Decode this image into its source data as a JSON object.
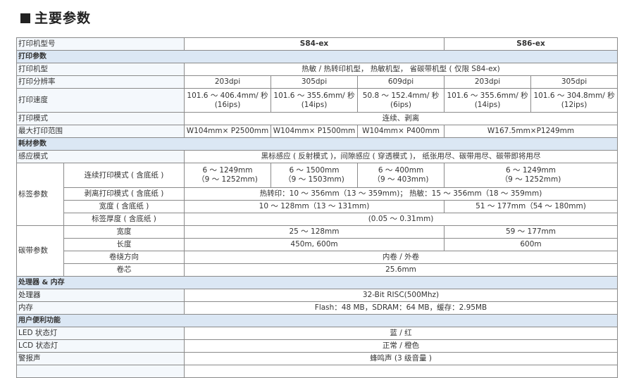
{
  "title": "主要参数",
  "header": {
    "label": "打印机型号",
    "models": [
      "S84-ex",
      "S86-ex"
    ]
  },
  "sections": {
    "print": "打印参数",
    "media": "耗材参数",
    "cpu": "处理器 & 内存",
    "user": "用户便利功能"
  },
  "rows": {
    "type": {
      "label": "打印机型",
      "value": "热敏 / 热转印机型， 热敏机型， 省碳带机型 ( 仅限 S84-ex)"
    },
    "resolution": {
      "label": "打印分辨率",
      "values": [
        "203dpi",
        "305dpi",
        "609dpi",
        "203dpi",
        "305dpi"
      ]
    },
    "speed": {
      "label": "打印速度",
      "values": [
        [
          "101.6 ～ 406.4mm/ 秒",
          "(16ips)"
        ],
        [
          "101.6 ～ 355.6mm/ 秒",
          "(14ips)"
        ],
        [
          "50.8 ～ 152.4mm/ 秒",
          "(6ips)"
        ],
        [
          "101.6 ～ 355.6mm/ 秒",
          "(14ips)"
        ],
        [
          "101.6 ～ 304.8mm/ 秒",
          "(12ips)"
        ]
      ]
    },
    "mode": {
      "label": "打印模式",
      "value": "连续、剥离"
    },
    "max_area": {
      "label": "最大打印范围",
      "values": [
        "W104mm× P2500mm",
        "W104mm× P1500mm",
        "W104mm× P400mm",
        "W167.5mm×P1249mm"
      ]
    },
    "sensor": {
      "label": "感应模式",
      "value": "黑标感应 ( 反射模式 )，间隙感应 ( 穿透模式 )， 纸张用尽、碳带用尽、碳带即将用尽"
    },
    "label_group": "标签参数",
    "continuous": {
      "label": "连续打印模式 ( 含底纸 )",
      "values": [
        [
          "6 ～ 1249mm",
          "（9 ～ 1252mm)"
        ],
        [
          "6 ～ 1500mm",
          "（9 ～ 1503mm)"
        ],
        [
          "6 ～ 400mm",
          "（9 ～ 403mm)"
        ],
        [
          "6 ～ 1249mm",
          "（9 ～ 1252mm)"
        ]
      ]
    },
    "peel": {
      "label": "剥离打印模式 ( 含底纸 )",
      "value": "热转印：10 ～ 356mm（13 ～ 359mm)；  热敏：15 ～ 356mm（18 ～ 359mm)"
    },
    "label_width": {
      "label": "宽度 ( 含底纸 )",
      "values": [
        "10 ～ 128mm（13 ～ 131mm)",
        "51 ～ 177mm（54 ～ 180mm)"
      ]
    },
    "label_thick": {
      "label": "标签厚度 ( 含底纸 )",
      "value": "(0.05 ～ 0.31mm)"
    },
    "ribbon_group": "碳带参数",
    "ribbon_width": {
      "label": "宽度",
      "values": [
        "25 ～ 128mm",
        "59 ～ 177mm"
      ]
    },
    "ribbon_length": {
      "label": "长度",
      "values": [
        "450m, 600m",
        "600m"
      ]
    },
    "ribbon_wind": {
      "label": "卷绕方向",
      "value": "内卷 / 外卷"
    },
    "ribbon_core": {
      "label": "卷芯",
      "value": "25.6mm"
    },
    "processor": {
      "label": "处理器",
      "value": "32-Bit RISC(500Mhz)"
    },
    "memory": {
      "label": "内存",
      "value": "Flash：48 MB，SDRAM：64 MB，缓存：2.95MB"
    },
    "led": {
      "label": "LED 状态灯",
      "value": "蓝 / 红"
    },
    "lcd": {
      "label": "LCD 状态灯",
      "value": "正常 / 橙色"
    },
    "buzzer": {
      "label": "警报声",
      "value": "蜂鸣声 (3 级音量 )"
    }
  },
  "colors": {
    "section_bg": "#dbe7f4",
    "label_bg": "#f4f8fc",
    "border": "#8a8a8a"
  }
}
